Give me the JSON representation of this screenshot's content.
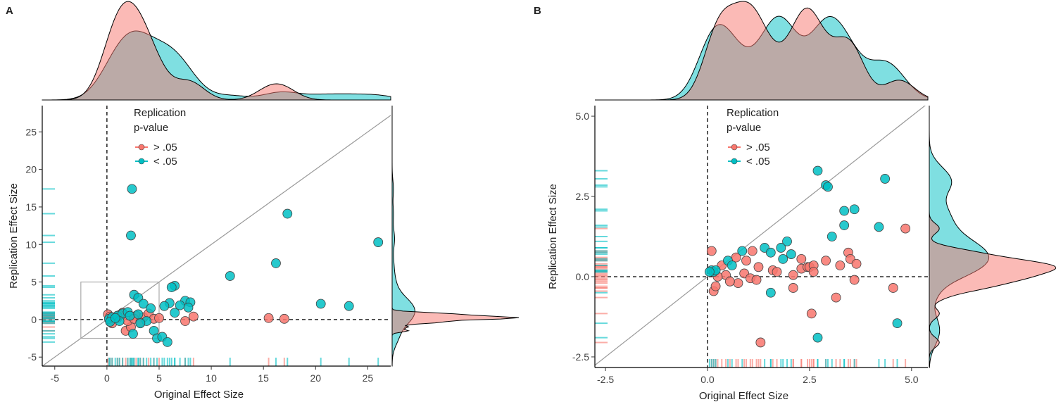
{
  "chart_data": [
    {
      "type": "scatter",
      "panel": "A",
      "x_label": "Original Effect Size",
      "y_label": "Replication Effect Size",
      "legend_title": [
        "Replication",
        "p-value"
      ],
      "xlim": [
        -6.2,
        27.2
      ],
      "ylim": [
        -6.2,
        28.5
      ],
      "xticks": [
        -5,
        0,
        5,
        10,
        15,
        20,
        25
      ],
      "yticks": [
        -5,
        0,
        5,
        10,
        15,
        20,
        25
      ],
      "zoom_box": {
        "xlim": [
          -2.5,
          5
        ],
        "ylim": [
          -2.5,
          5
        ]
      },
      "series": [
        {
          "name": "> .05",
          "color": "#f8766d",
          "x": [
            15.5,
            17,
            8.3,
            7.5,
            0.1,
            0.5,
            1,
            1.8,
            2.3,
            2.8,
            3.5,
            4,
            4.5,
            5,
            1.5,
            2,
            0.3,
            1.2,
            2.6,
            3.2
          ],
          "y": [
            0.2,
            0.1,
            0.4,
            -0.2,
            0.7,
            -0.5,
            0.2,
            -1.5,
            -1,
            0.5,
            0.3,
            0.8,
            0.1,
            0.2,
            0.9,
            -0.2,
            0.4,
            0.6,
            0.1,
            -0.4
          ]
        },
        {
          "name": "< .05",
          "color": "#00bfc4",
          "x": [
            2.4,
            2.3,
            17.3,
            26,
            11.8,
            16.2,
            20.5,
            23.2,
            6.5,
            6.2,
            7.5,
            8,
            7.8,
            6,
            5.5,
            2.6,
            3,
            3.5,
            4.2,
            3.8,
            4.5,
            4.8,
            5.3,
            5.8,
            2.5,
            3.2,
            0.2,
            0.5,
            1,
            1.5,
            2,
            0.3,
            1.2,
            2.2,
            3,
            6.5,
            7,
            0.8
          ],
          "y": [
            17.4,
            11.2,
            14.1,
            10.3,
            5.8,
            7.5,
            2.1,
            1.8,
            4.5,
            4.3,
            2.5,
            2.3,
            1.6,
            2.2,
            1.8,
            3.3,
            2.9,
            2.1,
            1.5,
            -0.2,
            -1.5,
            -2.5,
            -2.3,
            -3,
            -1.9,
            -0.5,
            0.1,
            0.3,
            0.5,
            0.8,
            1,
            -0.3,
            -0.2,
            0.5,
            0.7,
            0.9,
            1.9,
            0.2
          ]
        }
      ]
    },
    {
      "type": "scatter",
      "panel": "B",
      "x_label": "Original Effect Size",
      "y_label": "Replication Effect Size",
      "legend_title": [
        "Replication",
        "p-value"
      ],
      "xlim": [
        -2.76,
        5.4
      ],
      "ylim": [
        -2.83,
        5.33
      ],
      "xticks": [
        -2.5,
        {
          "value": 0,
          "label": "0.0"
        },
        2.5,
        {
          "value": 5,
          "label": "5.0"
        }
      ],
      "yticks": [
        -2.5,
        {
          "value": 0,
          "label": "0.0"
        },
        2.5,
        {
          "value": 5,
          "label": "5.0"
        }
      ],
      "series": [
        {
          "name": "> .05",
          "color": "#f8766d",
          "x": [
            4.85,
            0.1,
            0.35,
            0.7,
            0.95,
            1.1,
            1.25,
            0.75,
            0.9,
            1.05,
            1.2,
            1.6,
            1.7,
            2.1,
            2.3,
            2.3,
            2.45,
            2.5,
            2.6,
            2.6,
            2.9,
            3.25,
            3.45,
            3.5,
            3.65,
            3.6,
            4.55,
            3.15,
            2.55,
            1.3,
            2.1,
            0.15,
            0.2,
            0.45,
            0.55,
            0.25
          ],
          "y": [
            1.5,
            0.8,
            0.35,
            0.6,
            0.5,
            0.8,
            0.3,
            -0.2,
            0.1,
            -0.05,
            -0.1,
            0.2,
            0.15,
            0.05,
            0.55,
            0.25,
            0.3,
            0.3,
            0.35,
            0.15,
            0.5,
            0.35,
            0.75,
            0.55,
            0.4,
            -0.1,
            -0.35,
            -0.65,
            -1.15,
            -2.05,
            -0.35,
            -0.45,
            -0.3,
            0.05,
            -0.15,
            0
          ]
        },
        {
          "name": "< .05",
          "color": "#00bfc4",
          "x": [
            2.7,
            2.9,
            2.95,
            4.35,
            3.35,
            3.6,
            3.35,
            4.2,
            3.05,
            1.95,
            1.8,
            1.4,
            1.55,
            1.85,
            2.05,
            0.5,
            0.6,
            0.85,
            1.55,
            2.7,
            4.65,
            0.1,
            0.15,
            0.2,
            0.05
          ],
          "y": [
            3.3,
            2.85,
            2.8,
            3.05,
            2.05,
            2.1,
            1.6,
            1.55,
            1.25,
            1.1,
            0.9,
            0.9,
            0.75,
            0.55,
            0.7,
            0.5,
            0.35,
            0.8,
            -0.5,
            -1.9,
            -1.45,
            0.2,
            0.15,
            0.2,
            0.15
          ]
        }
      ]
    }
  ]
}
